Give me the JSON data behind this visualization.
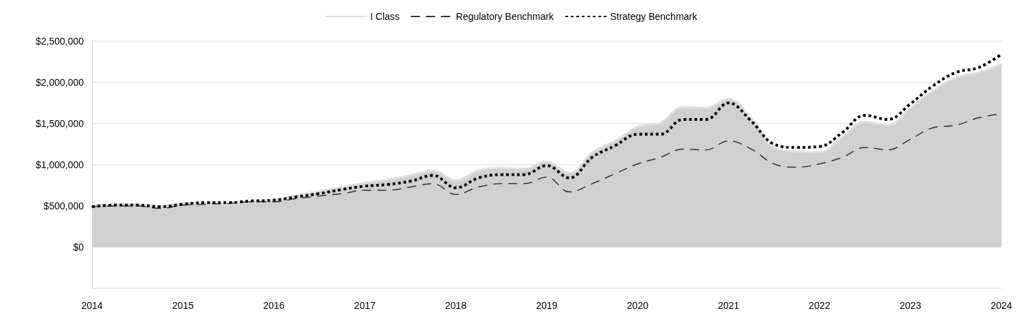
{
  "chart_data": {
    "type": "line",
    "x": [
      2014,
      2014.25,
      2014.5,
      2014.75,
      2015,
      2015.25,
      2015.5,
      2015.75,
      2016,
      2016.25,
      2016.5,
      2016.75,
      2017,
      2017.25,
      2017.5,
      2017.75,
      2018,
      2018.25,
      2018.5,
      2018.75,
      2019,
      2019.25,
      2019.5,
      2019.75,
      2020,
      2020.25,
      2020.5,
      2020.75,
      2021,
      2021.25,
      2021.5,
      2021.75,
      2022,
      2022.25,
      2022.5,
      2022.75,
      2023,
      2023.25,
      2023.5,
      2023.75,
      2024
    ],
    "series": [
      {
        "name": "I Class",
        "type": "area",
        "color": "#d0d0d0",
        "line_style": "solid",
        "values": [
          500000,
          520000,
          520000,
          500000,
          540000,
          520000,
          520000,
          550000,
          570000,
          630000,
          680000,
          730000,
          780000,
          820000,
          870000,
          930000,
          810000,
          930000,
          960000,
          950000,
          1040000,
          900000,
          1150000,
          1290000,
          1460000,
          1510000,
          1700000,
          1690000,
          1800000,
          1560000,
          1210000,
          1160000,
          1150000,
          1340000,
          1520000,
          1480000,
          1690000,
          1900000,
          2060000,
          2120000,
          2220000
        ]
      },
      {
        "name": "Regulatory Benchmark",
        "type": "line",
        "color": "#333333",
        "line_style": "dashed",
        "values": [
          490000,
          500000,
          500000,
          470000,
          510000,
          520000,
          530000,
          550000,
          550000,
          590000,
          620000,
          650000,
          690000,
          690000,
          730000,
          770000,
          640000,
          730000,
          770000,
          770000,
          850000,
          670000,
          770000,
          890000,
          1010000,
          1090000,
          1190000,
          1180000,
          1290000,
          1190000,
          1010000,
          970000,
          1010000,
          1090000,
          1210000,
          1180000,
          1310000,
          1450000,
          1480000,
          1570000,
          1620000
        ]
      },
      {
        "name": "Strategy Benchmark",
        "type": "line",
        "color": "#000000",
        "line_style": "dotted",
        "values": [
          490000,
          510000,
          510000,
          490000,
          520000,
          540000,
          540000,
          560000,
          570000,
          610000,
          650000,
          700000,
          740000,
          760000,
          800000,
          870000,
          720000,
          840000,
          880000,
          880000,
          990000,
          840000,
          1090000,
          1230000,
          1370000,
          1370000,
          1550000,
          1550000,
          1750000,
          1530000,
          1250000,
          1210000,
          1220000,
          1390000,
          1600000,
          1550000,
          1740000,
          1960000,
          2120000,
          2180000,
          2340000
        ]
      }
    ],
    "xlim": [
      2014,
      2024
    ],
    "xticks": [
      2014,
      2015,
      2016,
      2017,
      2018,
      2019,
      2020,
      2021,
      2022,
      2023,
      2024
    ],
    "ylim": [
      -500000,
      2500000
    ],
    "yticks": [
      {
        "value": -500000,
        "label": null
      },
      {
        "value": 0,
        "label": "$0"
      },
      {
        "value": 500000,
        "label": "$500,000"
      },
      {
        "value": 1000000,
        "label": "$1,000,000"
      },
      {
        "value": 1500000,
        "label": "$1,500,000"
      },
      {
        "value": 2000000,
        "label": "$2,000,000"
      },
      {
        "value": 2500000,
        "label": "$2,500,000"
      }
    ],
    "grid": "y",
    "legend": "top",
    "marker": "none"
  }
}
